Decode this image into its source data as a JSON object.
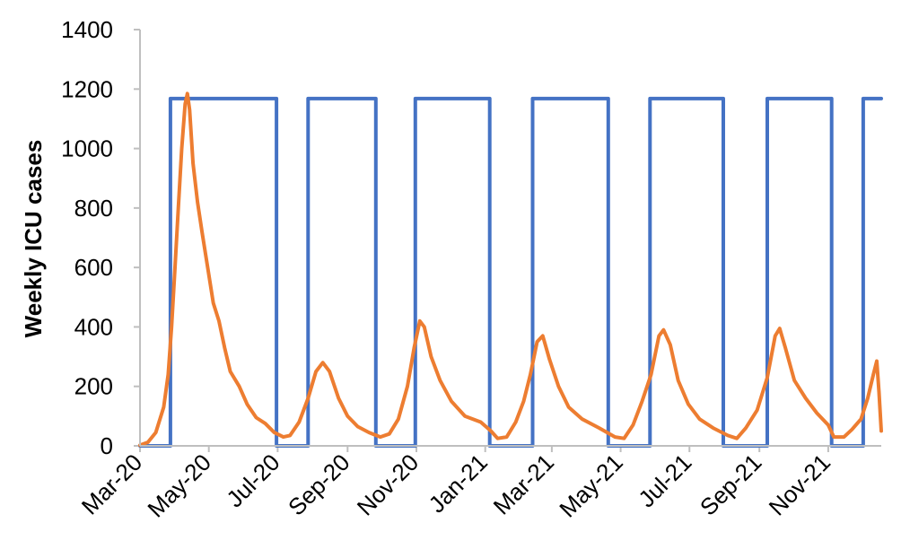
{
  "chart_data": {
    "type": "line",
    "title": "",
    "xlabel": "",
    "ylabel": "Weekly ICU cases",
    "ylim": [
      0,
      1400
    ],
    "yticks": [
      0,
      200,
      400,
      600,
      800,
      1000,
      1200,
      1400
    ],
    "xlim": [
      "2020-03-01",
      "2021-12-18"
    ],
    "xticks": [
      "Mar-20",
      "May-20",
      "Jul-20",
      "Sep-20",
      "Nov-20",
      "Jan-21",
      "Mar-21",
      "May-21",
      "Jul-21",
      "Sep-21",
      "Nov-21"
    ],
    "grid": false,
    "legend": "none",
    "series": [
      {
        "color": "#4472C4",
        "points": [
          [
            "2020-03-01",
            0
          ],
          [
            "2020-03-28",
            0
          ],
          [
            "2020-03-28",
            1168
          ],
          [
            "2020-06-30",
            1168
          ],
          [
            "2020-06-30",
            0
          ],
          [
            "2020-07-28",
            0
          ],
          [
            "2020-07-28",
            1168
          ],
          [
            "2020-09-26",
            1168
          ],
          [
            "2020-09-26",
            0
          ],
          [
            "2020-10-31",
            0
          ],
          [
            "2020-10-31",
            1168
          ],
          [
            "2021-01-05",
            1168
          ],
          [
            "2021-01-05",
            0
          ],
          [
            "2021-02-12",
            0
          ],
          [
            "2021-02-12",
            1168
          ],
          [
            "2021-04-20",
            1168
          ],
          [
            "2021-04-20",
            0
          ],
          [
            "2021-05-27",
            0
          ],
          [
            "2021-05-27",
            1168
          ],
          [
            "2021-07-31",
            1168
          ],
          [
            "2021-07-31",
            0
          ],
          [
            "2021-09-08",
            0
          ],
          [
            "2021-09-08",
            1168
          ],
          [
            "2021-11-04",
            1168
          ],
          [
            "2021-11-04",
            0
          ],
          [
            "2021-12-02",
            0
          ],
          [
            "2021-12-02",
            1168
          ],
          [
            "2021-12-18",
            1168
          ]
        ]
      },
      {
        "color": "#ED7D31",
        "points": [
          [
            "2020-03-01",
            2
          ],
          [
            "2020-03-08",
            12
          ],
          [
            "2020-03-15",
            45
          ],
          [
            "2020-03-22",
            130
          ],
          [
            "2020-03-26",
            240
          ],
          [
            "2020-03-29",
            400
          ],
          [
            "2020-04-01",
            600
          ],
          [
            "2020-04-04",
            800
          ],
          [
            "2020-04-07",
            1000
          ],
          [
            "2020-04-10",
            1150
          ],
          [
            "2020-04-12",
            1185
          ],
          [
            "2020-04-14",
            1130
          ],
          [
            "2020-04-17",
            950
          ],
          [
            "2020-04-21",
            820
          ],
          [
            "2020-04-25",
            720
          ],
          [
            "2020-04-30",
            600
          ],
          [
            "2020-05-05",
            480
          ],
          [
            "2020-05-10",
            420
          ],
          [
            "2020-05-15",
            330
          ],
          [
            "2020-05-20",
            250
          ],
          [
            "2020-05-28",
            200
          ],
          [
            "2020-06-04",
            140
          ],
          [
            "2020-06-12",
            95
          ],
          [
            "2020-06-20",
            75
          ],
          [
            "2020-06-28",
            45
          ],
          [
            "2020-07-06",
            30
          ],
          [
            "2020-07-12",
            35
          ],
          [
            "2020-07-20",
            80
          ],
          [
            "2020-07-28",
            160
          ],
          [
            "2020-08-04",
            250
          ],
          [
            "2020-08-10",
            280
          ],
          [
            "2020-08-16",
            250
          ],
          [
            "2020-08-24",
            160
          ],
          [
            "2020-09-01",
            100
          ],
          [
            "2020-09-10",
            65
          ],
          [
            "2020-09-20",
            45
          ],
          [
            "2020-09-30",
            30
          ],
          [
            "2020-10-08",
            40
          ],
          [
            "2020-10-16",
            90
          ],
          [
            "2020-10-24",
            200
          ],
          [
            "2020-10-30",
            330
          ],
          [
            "2020-11-04",
            420
          ],
          [
            "2020-11-08",
            400
          ],
          [
            "2020-11-14",
            300
          ],
          [
            "2020-11-22",
            220
          ],
          [
            "2020-12-02",
            150
          ],
          [
            "2020-12-14",
            100
          ],
          [
            "2020-12-28",
            80
          ],
          [
            "2021-01-06",
            50
          ],
          [
            "2021-01-12",
            25
          ],
          [
            "2021-01-20",
            30
          ],
          [
            "2021-01-28",
            80
          ],
          [
            "2021-02-04",
            150
          ],
          [
            "2021-02-10",
            240
          ],
          [
            "2021-02-16",
            350
          ],
          [
            "2021-02-21",
            370
          ],
          [
            "2021-02-27",
            290
          ],
          [
            "2021-03-07",
            200
          ],
          [
            "2021-03-16",
            130
          ],
          [
            "2021-03-28",
            90
          ],
          [
            "2021-04-12",
            60
          ],
          [
            "2021-04-26",
            30
          ],
          [
            "2021-05-04",
            25
          ],
          [
            "2021-05-12",
            70
          ],
          [
            "2021-05-20",
            150
          ],
          [
            "2021-05-28",
            240
          ],
          [
            "2021-06-04",
            370
          ],
          [
            "2021-06-08",
            390
          ],
          [
            "2021-06-14",
            340
          ],
          [
            "2021-06-21",
            220
          ],
          [
            "2021-06-30",
            140
          ],
          [
            "2021-07-10",
            90
          ],
          [
            "2021-07-22",
            60
          ],
          [
            "2021-08-04",
            35
          ],
          [
            "2021-08-12",
            25
          ],
          [
            "2021-08-20",
            60
          ],
          [
            "2021-08-30",
            120
          ],
          [
            "2021-09-08",
            230
          ],
          [
            "2021-09-15",
            370
          ],
          [
            "2021-09-19",
            395
          ],
          [
            "2021-09-24",
            330
          ],
          [
            "2021-10-02",
            220
          ],
          [
            "2021-10-12",
            160
          ],
          [
            "2021-10-22",
            110
          ],
          [
            "2021-11-01",
            70
          ],
          [
            "2021-11-06",
            30
          ],
          [
            "2021-11-15",
            30
          ],
          [
            "2021-11-22",
            55
          ],
          [
            "2021-11-30",
            90
          ],
          [
            "2021-12-06",
            160
          ],
          [
            "2021-12-11",
            240
          ],
          [
            "2021-12-14",
            285
          ],
          [
            "2021-12-16",
            180
          ],
          [
            "2021-12-18",
            50
          ]
        ]
      }
    ]
  }
}
